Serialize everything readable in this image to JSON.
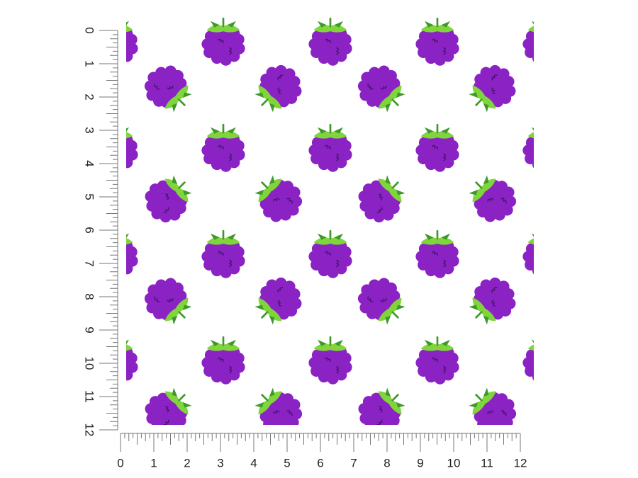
{
  "vertical_ruler": {
    "labels": [
      0,
      1,
      2,
      3,
      4,
      5,
      6,
      7,
      8,
      9,
      10,
      11,
      12
    ]
  },
  "horizontal_ruler": {
    "labels": [
      0,
      1,
      2,
      3,
      4,
      5,
      6,
      7,
      8,
      9,
      10,
      11,
      12
    ]
  }
}
